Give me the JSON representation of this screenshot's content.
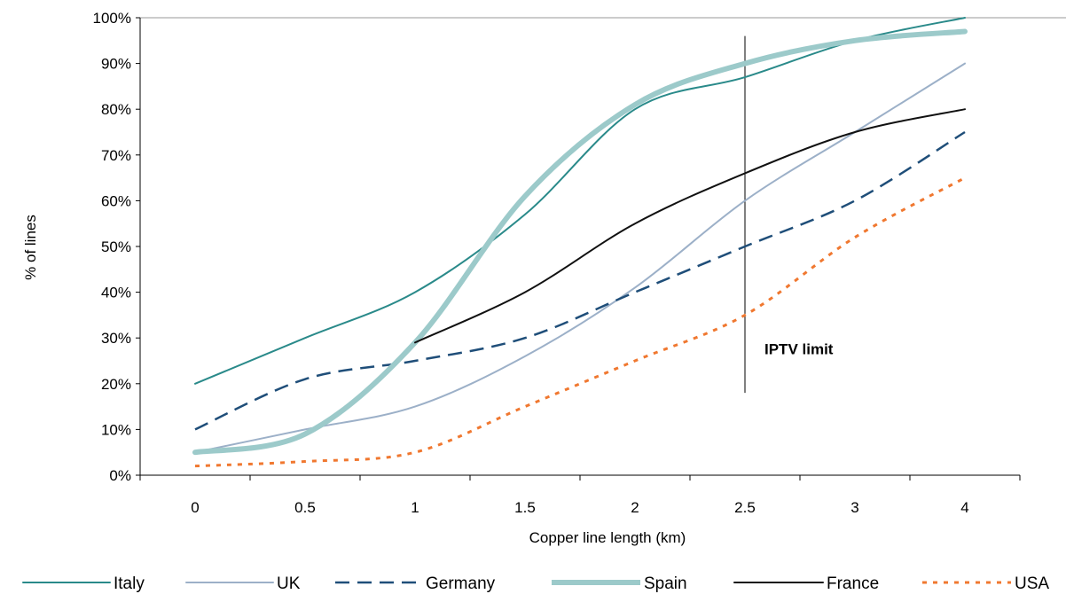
{
  "chart_data": {
    "type": "line",
    "title": "",
    "xlabel": "Copper line length (km)",
    "ylabel": "% of lines",
    "x_ticks": [
      "0",
      "0.5",
      "1",
      "1.5",
      "2",
      "2.5",
      "3",
      "4"
    ],
    "y_ticks": [
      "0%",
      "10%",
      "20%",
      "30%",
      "40%",
      "50%",
      "60%",
      "70%",
      "80%",
      "90%",
      "100%"
    ],
    "ylim": [
      0,
      100
    ],
    "grid": "top border line only",
    "legend_position": "bottom",
    "annotation": {
      "text": "IPTV limit",
      "x": "2.5",
      "y_range": [
        18,
        96
      ]
    },
    "series": [
      {
        "name": "Italy",
        "color": "#2a8a8a",
        "style": "solid",
        "values": [
          20,
          30,
          40,
          57,
          80,
          87,
          95,
          100
        ],
        "start_index": 0
      },
      {
        "name": "UK",
        "color": "#9cb0c8",
        "style": "solid",
        "values": [
          5,
          10,
          15,
          26,
          41,
          60,
          75,
          90
        ],
        "start_index": 0
      },
      {
        "name": "Germany",
        "color": "#1f4e79",
        "style": "dashed",
        "values": [
          10,
          21,
          25,
          30,
          40,
          50,
          60,
          75
        ],
        "start_index": 0
      },
      {
        "name": "Spain",
        "color": "#9ccaca",
        "style": "thick",
        "values": [
          5,
          9,
          29,
          61,
          81,
          90,
          95,
          97
        ],
        "start_index": 0
      },
      {
        "name": "France",
        "color": "#111111",
        "style": "solid",
        "values": [
          29,
          40,
          55,
          66,
          75,
          80
        ],
        "start_index": 2
      },
      {
        "name": "USA",
        "color": "#f07830",
        "style": "dotted",
        "values": [
          2,
          3,
          5,
          15,
          25,
          35,
          52,
          65
        ],
        "start_index": 0
      }
    ]
  }
}
